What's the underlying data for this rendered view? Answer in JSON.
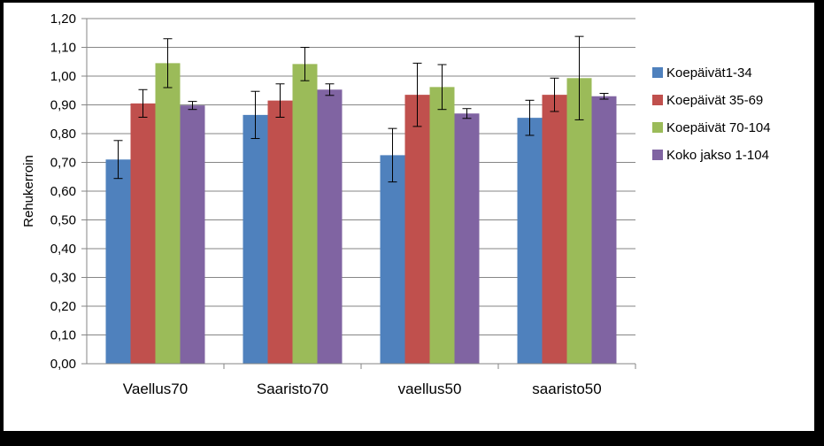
{
  "chart_data": {
    "type": "bar",
    "title": "",
    "xlabel": "",
    "ylabel": "Rehukerroin",
    "ylim": [
      0,
      1.2
    ],
    "ytick_step": 0.1,
    "yticks": [
      "0,00",
      "0,10",
      "0,20",
      "0,30",
      "0,40",
      "0,50",
      "0,60",
      "0,70",
      "0,80",
      "0,90",
      "1,00",
      "1,10",
      "1,20"
    ],
    "grid": true,
    "legend_position": "right",
    "categories": [
      "Vaellus70",
      "Saaristo70",
      "vaellus50",
      "saaristo50"
    ],
    "series": [
      {
        "name": "Koepäivät1-34",
        "color": "#4f81bd",
        "values": [
          0.71,
          0.865,
          0.725,
          0.855
        ],
        "errors": [
          0.066,
          0.082,
          0.093,
          0.061
        ]
      },
      {
        "name": "Koepäivät 35-69",
        "color": "#c0504d",
        "values": [
          0.905,
          0.915,
          0.935,
          0.935
        ],
        "errors": [
          0.048,
          0.058,
          0.11,
          0.058
        ]
      },
      {
        "name": "Koepäivät 70-104",
        "color": "#9bbb59",
        "values": [
          1.045,
          1.042,
          0.962,
          0.993
        ],
        "errors": [
          0.085,
          0.058,
          0.078,
          0.145
        ]
      },
      {
        "name": "Koko jakso 1-104",
        "color": "#8064a2",
        "values": [
          0.898,
          0.953,
          0.87,
          0.93
        ],
        "errors": [
          0.014,
          0.02,
          0.017,
          0.01
        ]
      }
    ]
  }
}
